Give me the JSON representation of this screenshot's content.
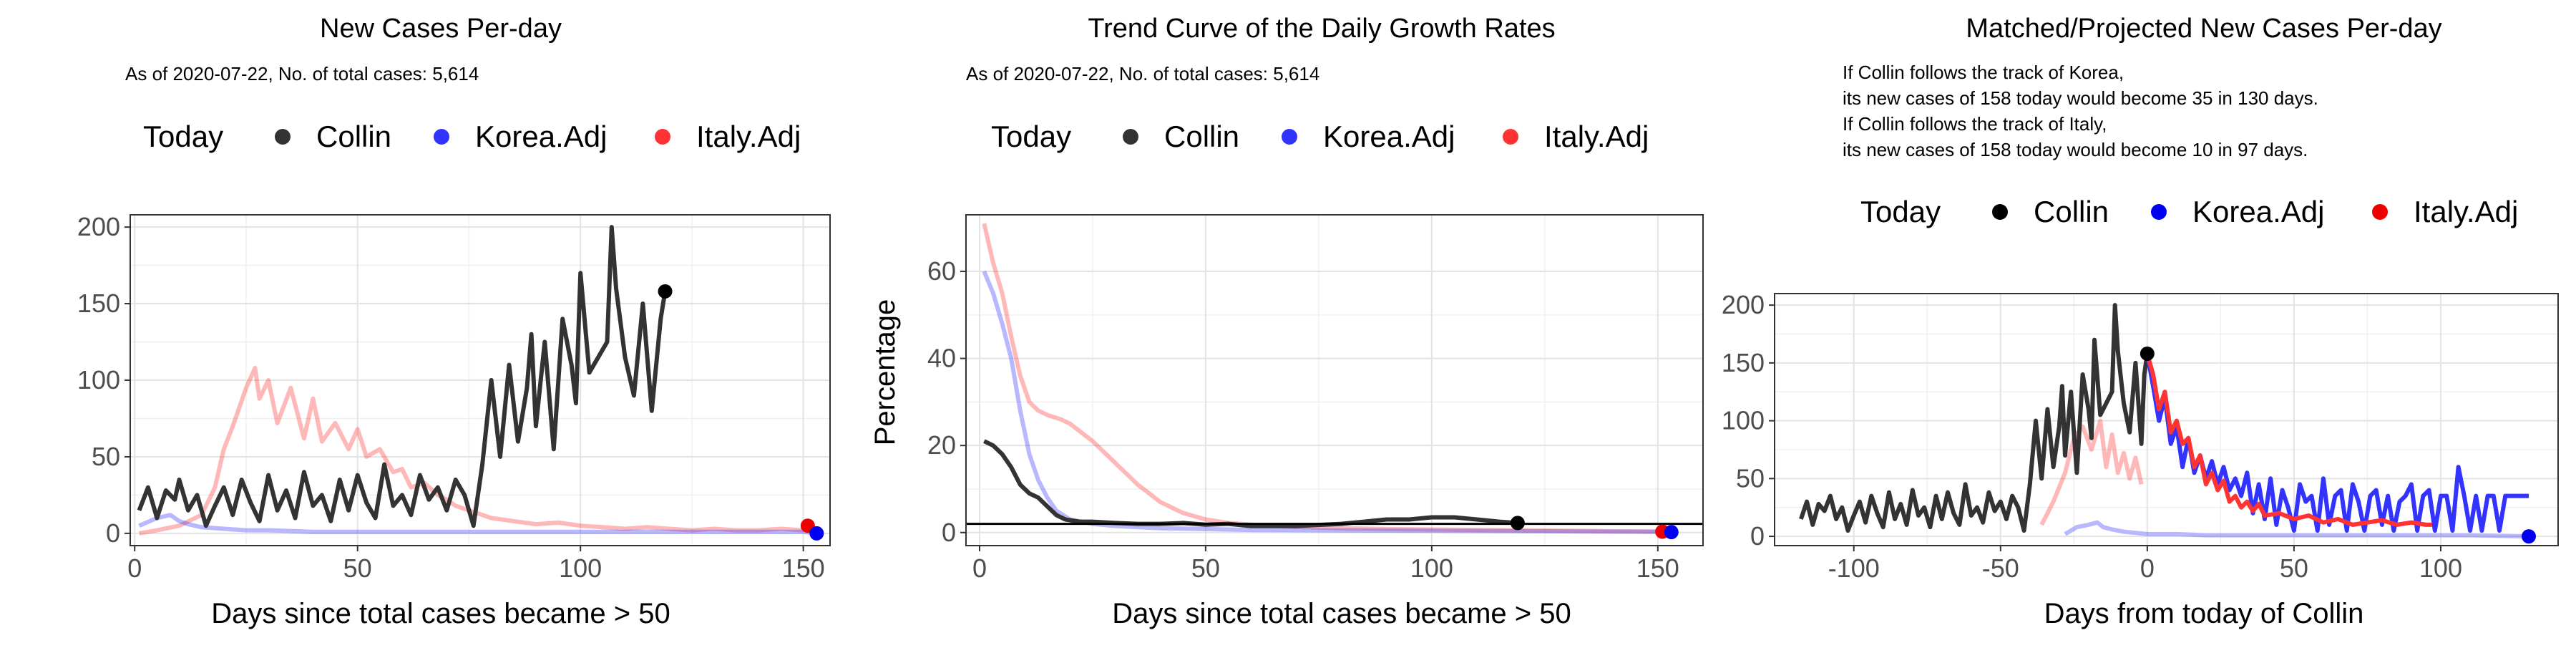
{
  "colors": {
    "collin": "#333333",
    "korea": "#3333ff",
    "italy": "#ff3333",
    "today": "#000000"
  },
  "charts": [
    {
      "title": "New Cases Per-day",
      "subtitle": [
        "As of 2020-07-22, No. of total cases: 5,614"
      ],
      "xlabel": "Days since total cases became > 50",
      "ylabel": ""
    },
    {
      "title": "Trend Curve of the Daily Growth Rates",
      "subtitle": [
        "As of 2020-07-22, No. of total cases: 5,614"
      ],
      "xlabel": "Days since total cases became > 50",
      "ylabel": "Percentage"
    },
    {
      "title": "Matched/Projected New Cases Per-day",
      "subtitle": [
        "If Collin follows the track of Korea,",
        "its new cases of 158 today would become 35 in 130 days.",
        "If Collin follows the track of Italy,",
        "its new cases of 158 today would become 10 in 97 days."
      ],
      "xlabel": "Days from today of Collin",
      "ylabel": ""
    }
  ],
  "legend": {
    "today_label": "Today",
    "series": [
      "Collin",
      "Korea.Adj",
      "Italy.Adj"
    ]
  },
  "chart_data": [
    {
      "type": "line",
      "title": "New Cases Per-day",
      "xlabel": "Days since total cases became > 50",
      "xlim": [
        -1,
        156
      ],
      "ylim": [
        -8,
        208
      ],
      "xticks": [
        0,
        50,
        100,
        150
      ],
      "yticks": [
        0,
        50,
        100,
        150,
        200
      ],
      "grid": true,
      "legend_position": "top",
      "series": [
        {
          "name": "Italy.Adj",
          "alpha": 0.35,
          "x": [
            1,
            5,
            10,
            15,
            18,
            20,
            22,
            25,
            27,
            28,
            30,
            32,
            35,
            38,
            40,
            42,
            45,
            48,
            50,
            52,
            55,
            58,
            60,
            62,
            65,
            68,
            70,
            72,
            75,
            78,
            80,
            85,
            90,
            95,
            100,
            105,
            110,
            115,
            120,
            125,
            130,
            135,
            140,
            145,
            150
          ],
          "y": [
            0,
            2,
            5,
            12,
            30,
            55,
            70,
            95,
            108,
            88,
            100,
            72,
            95,
            62,
            88,
            60,
            72,
            55,
            68,
            50,
            55,
            40,
            42,
            30,
            33,
            25,
            22,
            18,
            15,
            12,
            10,
            8,
            6,
            7,
            5,
            4,
            3,
            4,
            3,
            2,
            3,
            2,
            2,
            3,
            2
          ]
        },
        {
          "name": "Korea.Adj",
          "alpha": 0.35,
          "x": [
            1,
            5,
            8,
            10,
            12,
            15,
            20,
            25,
            30,
            40,
            50,
            60,
            70,
            80,
            90,
            100,
            110,
            120,
            130,
            140,
            150,
            153
          ],
          "y": [
            5,
            10,
            12,
            8,
            6,
            4,
            3,
            2,
            2,
            1,
            1,
            1,
            1,
            1,
            1,
            1,
            1,
            1,
            1,
            1,
            1,
            0
          ]
        },
        {
          "name": "Collin",
          "alpha": 1,
          "x": [
            1,
            3,
            5,
            7,
            9,
            10,
            12,
            14,
            16,
            18,
            20,
            22,
            24,
            26,
            28,
            30,
            32,
            34,
            36,
            38,
            40,
            42,
            44,
            46,
            48,
            50,
            52,
            54,
            56,
            58,
            60,
            62,
            64,
            66,
            68,
            70,
            72,
            74,
            76,
            78,
            80,
            81,
            82,
            84,
            86,
            88,
            89,
            90,
            92,
            94,
            96,
            98,
            99,
            100,
            102,
            104,
            106,
            107,
            108,
            110,
            112,
            114,
            116,
            118,
            119
          ],
          "y": [
            15,
            30,
            10,
            28,
            22,
            35,
            15,
            25,
            5,
            18,
            30,
            12,
            35,
            20,
            8,
            38,
            15,
            28,
            10,
            40,
            18,
            25,
            8,
            35,
            15,
            38,
            20,
            10,
            45,
            18,
            25,
            12,
            38,
            22,
            30,
            15,
            35,
            25,
            5,
            45,
            100,
            75,
            50,
            110,
            60,
            95,
            130,
            70,
            125,
            55,
            140,
            110,
            85,
            170,
            105,
            115,
            125,
            200,
            160,
            115,
            90,
            150,
            80,
            140,
            158
          ]
        }
      ],
      "today": [
        {
          "series": "Collin",
          "x": 119,
          "y": 158
        },
        {
          "series": "Italy.Adj",
          "x": 151,
          "y": 5
        },
        {
          "series": "Korea.Adj",
          "x": 153,
          "y": 0
        }
      ]
    },
    {
      "type": "line",
      "title": "Trend Curve of the Daily Growth Rates",
      "xlabel": "Days since total cases became > 50",
      "ylabel": "Percentage",
      "xlim": [
        -3,
        160
      ],
      "ylim": [
        -3,
        73
      ],
      "xticks": [
        0,
        50,
        100,
        150
      ],
      "yticks": [
        0,
        20,
        40,
        60
      ],
      "grid": true,
      "legend_position": "top",
      "hline": 2,
      "series": [
        {
          "name": "Italy.Adj",
          "alpha": 0.35,
          "x": [
            1,
            3,
            5,
            7,
            9,
            11,
            13,
            15,
            18,
            20,
            25,
            30,
            35,
            40,
            45,
            50,
            55,
            60,
            70,
            80,
            90,
            100,
            110,
            120,
            130,
            140,
            150,
            152
          ],
          "y": [
            71,
            62,
            55,
            45,
            36,
            30,
            28,
            27,
            26,
            25,
            21,
            16,
            11,
            7,
            4.5,
            3,
            2.2,
            1.8,
            1.3,
            1,
            0.8,
            0.7,
            0.6,
            0.5,
            0.4,
            0.3,
            0.3,
            0.2
          ]
        },
        {
          "name": "Korea.Adj",
          "alpha": 0.35,
          "x": [
            1,
            3,
            5,
            7,
            9,
            11,
            13,
            15,
            17,
            20,
            25,
            30,
            40,
            50,
            60,
            80,
            100,
            120,
            140,
            153
          ],
          "y": [
            60,
            55,
            48,
            40,
            28,
            18,
            12,
            8,
            5,
            3,
            2,
            1.5,
            1,
            0.8,
            0.6,
            0.5,
            0.4,
            0.3,
            0.2,
            0.1
          ]
        },
        {
          "name": "Collin",
          "alpha": 1,
          "x": [
            1,
            3,
            5,
            7,
            9,
            11,
            13,
            15,
            17,
            19,
            22,
            25,
            30,
            35,
            40,
            45,
            50,
            55,
            60,
            70,
            80,
            85,
            90,
            95,
            100,
            105,
            110,
            115,
            119
          ],
          "y": [
            21,
            20,
            18,
            15,
            11,
            9,
            8,
            6,
            4,
            3,
            2.5,
            2.5,
            2.2,
            2,
            2,
            2.2,
            1.8,
            2,
            1.5,
            1.5,
            2,
            2.5,
            3,
            3,
            3.5,
            3.5,
            3,
            2.5,
            2.2
          ]
        }
      ],
      "today": [
        {
          "series": "Collin",
          "x": 119,
          "y": 2.2
        },
        {
          "series": "Italy.Adj",
          "x": 151,
          "y": 0.2
        },
        {
          "series": "Korea.Adj",
          "x": 153,
          "y": 0.1
        }
      ]
    },
    {
      "type": "line",
      "title": "Matched/Projected New Cases Per-day",
      "xlabel": "Days from today of Collin",
      "xlim": [
        -127,
        140
      ],
      "ylim": [
        -8,
        210
      ],
      "xticks": [
        -100,
        -50,
        0,
        50,
        100
      ],
      "yticks": [
        0,
        50,
        100,
        150,
        200
      ],
      "grid": true,
      "legend_position": "top",
      "series": [
        {
          "name": "Italy.Adj",
          "alpha": 0.35,
          "x": [
            -36,
            -32,
            -28,
            -25,
            -22,
            -19,
            -16,
            -14,
            -12,
            -10,
            -8,
            -6,
            -4,
            -2
          ],
          "y": [
            10,
            30,
            55,
            85,
            95,
            75,
            100,
            60,
            88,
            55,
            72,
            50,
            68,
            45
          ]
        },
        {
          "name": "Korea.Adj",
          "alpha": 0.35,
          "x": [
            -28,
            -24,
            -20,
            -17,
            -15,
            -12,
            -8,
            -4,
            0,
            10,
            20,
            30,
            50,
            70,
            90,
            110,
            130
          ],
          "y": [
            2,
            8,
            10,
            12,
            8,
            6,
            4,
            3,
            2,
            2,
            1,
            1,
            1,
            1,
            1,
            1,
            0
          ]
        },
        {
          "name": "Collin",
          "alpha": 1,
          "x": [
            -118,
            -116,
            -114,
            -112,
            -110,
            -108,
            -106,
            -104,
            -102,
            -100,
            -98,
            -96,
            -94,
            -92,
            -90,
            -88,
            -86,
            -84,
            -82,
            -80,
            -78,
            -76,
            -74,
            -72,
            -70,
            -68,
            -66,
            -64,
            -62,
            -60,
            -58,
            -56,
            -54,
            -52,
            -50,
            -48,
            -46,
            -44,
            -42,
            -40,
            -38,
            -37,
            -36,
            -34,
            -32,
            -30,
            -29,
            -28,
            -26,
            -24,
            -22,
            -20,
            -19,
            -18,
            -16,
            -14,
            -12,
            -11,
            -10,
            -8,
            -6,
            -4,
            -2,
            -1,
            0
          ],
          "y": [
            15,
            30,
            10,
            28,
            22,
            35,
            15,
            25,
            5,
            18,
            30,
            12,
            35,
            20,
            8,
            38,
            15,
            28,
            10,
            40,
            18,
            25,
            8,
            35,
            15,
            38,
            20,
            10,
            45,
            18,
            25,
            12,
            38,
            22,
            30,
            15,
            35,
            25,
            5,
            45,
            100,
            75,
            50,
            110,
            60,
            95,
            130,
            70,
            125,
            55,
            140,
            110,
            85,
            170,
            105,
            115,
            125,
            200,
            160,
            115,
            90,
            150,
            80,
            140,
            158
          ]
        },
        {
          "name": "Korea.Adj",
          "alpha": 1,
          "projected": true,
          "x": [
            0,
            2,
            4,
            6,
            8,
            10,
            12,
            14,
            16,
            18,
            20,
            22,
            24,
            26,
            28,
            30,
            32,
            34,
            36,
            38,
            40,
            42,
            44,
            46,
            48,
            50,
            52,
            54,
            56,
            58,
            60,
            62,
            64,
            66,
            68,
            70,
            72,
            74,
            76,
            78,
            80,
            82,
            84,
            86,
            88,
            90,
            92,
            94,
            96,
            98,
            100,
            102,
            104,
            106,
            108,
            110,
            112,
            114,
            116,
            118,
            120,
            122,
            124,
            126,
            128,
            130
          ],
          "y": [
            158,
            130,
            100,
            120,
            80,
            95,
            60,
            85,
            55,
            70,
            50,
            65,
            45,
            60,
            40,
            50,
            35,
            55,
            20,
            45,
            15,
            50,
            10,
            40,
            25,
            5,
            45,
            30,
            35,
            5,
            50,
            10,
            35,
            40,
            5,
            45,
            30,
            5,
            35,
            40,
            10,
            35,
            5,
            30,
            35,
            45,
            5,
            35,
            40,
            5,
            35,
            35,
            5,
            60,
            35,
            5,
            35,
            5,
            35,
            35,
            5,
            35,
            35,
            35,
            35,
            35
          ]
        },
        {
          "name": "Italy.Adj",
          "alpha": 1,
          "projected": true,
          "x": [
            0,
            2,
            4,
            6,
            8,
            10,
            12,
            14,
            16,
            18,
            20,
            22,
            24,
            26,
            28,
            30,
            32,
            34,
            36,
            38,
            40,
            45,
            50,
            55,
            60,
            65,
            70,
            75,
            80,
            85,
            90,
            95,
            97
          ],
          "y": [
            158,
            140,
            110,
            125,
            90,
            100,
            80,
            85,
            60,
            70,
            45,
            55,
            40,
            48,
            30,
            35,
            25,
            30,
            22,
            28,
            18,
            20,
            15,
            18,
            12,
            15,
            10,
            12,
            14,
            10,
            12,
            10,
            10
          ]
        }
      ],
      "today": [
        {
          "series": "Collin",
          "x": 0,
          "y": 158
        },
        {
          "series": "Korea.Adj",
          "x": 130,
          "y": 0
        }
      ]
    }
  ]
}
